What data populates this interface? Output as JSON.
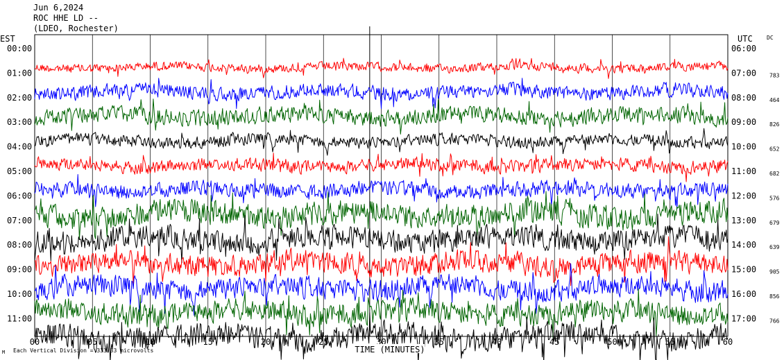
{
  "header": {
    "date": "Jun 6,2024",
    "station": "ROC HHE LD --",
    "network": "(LDEO, Rochester)"
  },
  "left_axis_title": "EST",
  "right_axis_title": "UTC",
  "dc_title": "DC",
  "footer": {
    "scale_note": "Each Vertical Division = 333.33 microvolts",
    "corner_mark": "M"
  },
  "chart_data": {
    "type": "line",
    "title": "ROC HHE LD --",
    "xlabel": "TIME (MINUTES)",
    "x_ticks": [
      "00",
      "05",
      "10",
      "15",
      "20",
      "25",
      "30",
      "35",
      "40",
      "45",
      "50",
      "55",
      "60"
    ],
    "xlim": [
      0,
      60
    ],
    "grid": true,
    "time_marker_minute": 29,
    "colors": {
      "red": "#ff0000",
      "blue": "#0000ff",
      "green": "#006400",
      "black": "#000000"
    },
    "rows": [
      {
        "est": "00:00",
        "utc": "06:00",
        "dc": "",
        "color": "#ff0000"
      },
      {
        "est": "01:00",
        "utc": "07:00",
        "dc": "783",
        "color": "#0000ff"
      },
      {
        "est": "02:00",
        "utc": "08:00",
        "dc": "464",
        "color": "#006400"
      },
      {
        "est": "03:00",
        "utc": "09:00",
        "dc": "826",
        "color": "#000000"
      },
      {
        "est": "04:00",
        "utc": "10:00",
        "dc": "652",
        "color": "#ff0000"
      },
      {
        "est": "05:00",
        "utc": "11:00",
        "dc": "682",
        "color": "#0000ff"
      },
      {
        "est": "06:00",
        "utc": "12:00",
        "dc": "576",
        "color": "#006400"
      },
      {
        "est": "07:00",
        "utc": "13:00",
        "dc": "679",
        "color": "#000000"
      },
      {
        "est": "08:00",
        "utc": "14:00",
        "dc": "639",
        "color": "#ff0000"
      },
      {
        "est": "09:00",
        "utc": "15:00",
        "dc": "905",
        "color": "#0000ff"
      },
      {
        "est": "10:00",
        "utc": "16:00",
        "dc": "856",
        "color": "#006400"
      },
      {
        "est": "11:00",
        "utc": "17:00",
        "dc": "766",
        "color": "#000000"
      }
    ],
    "series_amplitude": [
      0.22,
      0.35,
      0.4,
      0.3,
      0.32,
      0.38,
      0.6,
      0.55,
      0.55,
      0.55,
      0.55,
      0.6
    ]
  }
}
